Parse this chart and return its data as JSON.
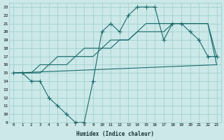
{
  "xlabel": "Humidex (Indice chaleur)",
  "bg_color": "#cce8e8",
  "grid_color": "#99cccc",
  "line_color": "#1a6b6b",
  "xlim": [
    -0.5,
    23.5
  ],
  "ylim": [
    9,
    23.5
  ],
  "xticks": [
    0,
    1,
    2,
    3,
    4,
    5,
    6,
    7,
    8,
    9,
    10,
    11,
    12,
    13,
    14,
    15,
    16,
    17,
    18,
    19,
    20,
    21,
    22,
    23
  ],
  "yticks": [
    9,
    10,
    11,
    12,
    13,
    14,
    15,
    16,
    17,
    18,
    19,
    20,
    21,
    22,
    23
  ],
  "line1_x": [
    0,
    1,
    2,
    3,
    4,
    5,
    6,
    7,
    8,
    9,
    10,
    11,
    12,
    13,
    14,
    15,
    16,
    17,
    18,
    19,
    20,
    21,
    22,
    23
  ],
  "line1_y": [
    15,
    15,
    15,
    16,
    16,
    17,
    17,
    17,
    18,
    18,
    18,
    19,
    19,
    19,
    20,
    20,
    20,
    20,
    21,
    21,
    21,
    21,
    21,
    17
  ],
  "line2_x": [
    0,
    1,
    2,
    3,
    4,
    5,
    6,
    7,
    8,
    9,
    10,
    11,
    12,
    13,
    14,
    15,
    16,
    17,
    18,
    19,
    20,
    21,
    22,
    23
  ],
  "line2_y": [
    15,
    15,
    15,
    15,
    16,
    16,
    16,
    17,
    17,
    17,
    18,
    18,
    19,
    19,
    20,
    21,
    21,
    21,
    21,
    21,
    21,
    21,
    21,
    16
  ],
  "line3_x": [
    0,
    1,
    2,
    3,
    4,
    5,
    6,
    7,
    8,
    9,
    10,
    11,
    12,
    13,
    14,
    15,
    16,
    17,
    18,
    19,
    20,
    21,
    22,
    23
  ],
  "line3_y": [
    15,
    15,
    14,
    14,
    12,
    11,
    10,
    9,
    9,
    14,
    20,
    21,
    20,
    22,
    23,
    23,
    23,
    19,
    21,
    21,
    20,
    19,
    17,
    17
  ],
  "line4_x": [
    0,
    23
  ],
  "line4_y": [
    15,
    16
  ]
}
